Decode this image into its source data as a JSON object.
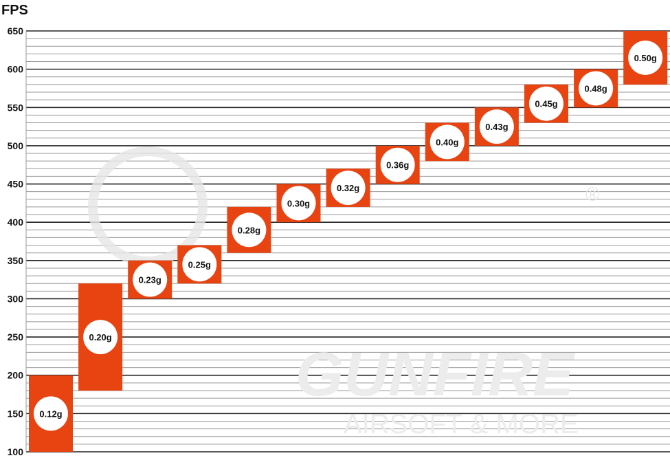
{
  "chart_data": {
    "type": "bar",
    "subtype": "floating-range",
    "title": "",
    "ylabel": "FPS",
    "xlabel": "",
    "ylim": [
      100,
      650
    ],
    "yticks": [
      100,
      150,
      200,
      250,
      300,
      350,
      400,
      450,
      500,
      550,
      600,
      650
    ],
    "minor_grid_step": 10,
    "grid": true,
    "bar_color": "#e84412",
    "categories": [
      "0.12g",
      "0.20g",
      "0.23g",
      "0.25g",
      "0.28g",
      "0.30g",
      "0.32g",
      "0.36g",
      "0.40g",
      "0.43g",
      "0.45g",
      "0.48g",
      "0.50g"
    ],
    "ranges": [
      [
        100,
        200
      ],
      [
        180,
        320
      ],
      [
        300,
        350
      ],
      [
        320,
        370
      ],
      [
        360,
        420
      ],
      [
        400,
        450
      ],
      [
        420,
        470
      ],
      [
        450,
        500
      ],
      [
        480,
        530
      ],
      [
        500,
        550
      ],
      [
        530,
        580
      ],
      [
        550,
        600
      ],
      [
        580,
        650
      ]
    ]
  },
  "watermark": {
    "brand": "GUNFIRE",
    "tagline": "AIRSOFT & MORE",
    "mark": "®"
  }
}
